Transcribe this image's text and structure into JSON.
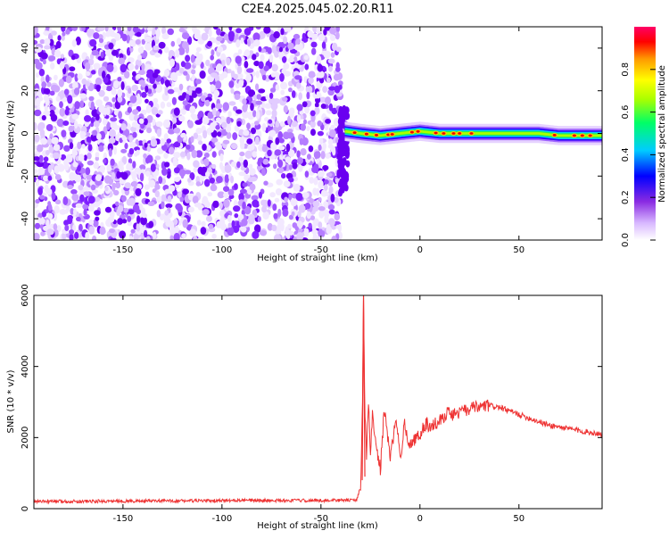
{
  "title": "C2E4.2025.045.02.20.R11",
  "chart_data": [
    {
      "type": "heatmap",
      "xlabel": "Height of straight line (km)",
      "ylabel": "Frequency (Hz)",
      "xlim": [
        -195,
        92
      ],
      "ylim": [
        -50,
        50
      ],
      "x_ticks": [
        -150,
        -100,
        -50,
        0,
        50
      ],
      "y_ticks": [
        -40,
        -20,
        0,
        20,
        40
      ],
      "noise_region_x": [
        -195,
        -40
      ],
      "signal_region_x": [
        -38,
        92
      ],
      "signal_ridge": [
        {
          "x": -38,
          "y": 1
        },
        {
          "x": -30,
          "y": 0
        },
        {
          "x": -20,
          "y": -1
        },
        {
          "x": -10,
          "y": 0
        },
        {
          "x": 0,
          "y": 1
        },
        {
          "x": 10,
          "y": 0
        },
        {
          "x": 20,
          "y": 0
        },
        {
          "x": 30,
          "y": 0
        },
        {
          "x": 40,
          "y": 0
        },
        {
          "x": 50,
          "y": 0
        },
        {
          "x": 60,
          "y": 0
        },
        {
          "x": 70,
          "y": -1
        },
        {
          "x": 80,
          "y": -1
        },
        {
          "x": 92,
          "y": -1
        }
      ],
      "colorbar": {
        "label": "Normalized spectral amplitude",
        "range": [
          0,
          1
        ],
        "ticks": [
          "0.0",
          "0.2",
          "0.4",
          "0.6",
          "0.8"
        ]
      },
      "grid": false
    },
    {
      "type": "line",
      "xlabel": "Height of straight line (km)",
      "ylabel": "SNR (10 * v/v)",
      "xlim": [
        -195,
        92
      ],
      "ylim": [
        0,
        6000
      ],
      "x_ticks": [
        -150,
        -100,
        -50,
        0,
        50
      ],
      "y_ticks": [
        0,
        2000,
        4000,
        6000
      ],
      "series": [
        {
          "color": "#ee3333",
          "x": [
            -195,
            -160,
            -120,
            -80,
            -50,
            -32,
            -30,
            -29,
            -28.5,
            -28,
            -27,
            -26,
            -25,
            -24,
            -22,
            -20,
            -18,
            -15,
            -12,
            -10,
            -8,
            -5,
            -3,
            0,
            3,
            6,
            10,
            14,
            16,
            20,
            25,
            30,
            35,
            40,
            45,
            50,
            55,
            60,
            65,
            70,
            75,
            80,
            85,
            92
          ],
          "y": [
            200,
            210,
            220,
            230,
            230,
            240,
            600,
            3000,
            6000,
            3200,
            1500,
            3000,
            1500,
            2600,
            1800,
            1100,
            2800,
            1400,
            2600,
            1300,
            2400,
            1800,
            1900,
            2100,
            2400,
            2300,
            2500,
            2700,
            2650,
            2700,
            2800,
            2850,
            2900,
            2850,
            2750,
            2650,
            2550,
            2450,
            2350,
            2300,
            2250,
            2200,
            2150,
            2100
          ]
        }
      ],
      "grid": false
    }
  ]
}
